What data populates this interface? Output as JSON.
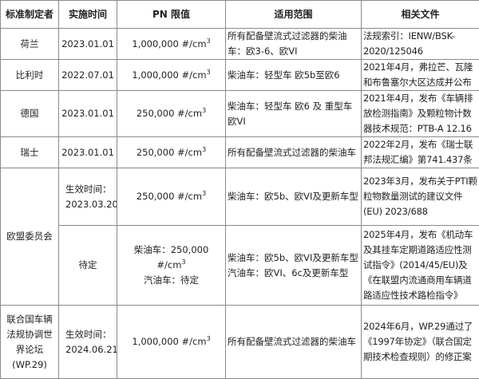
{
  "headers": [
    "标准制定者",
    "实施时间",
    "PN 限值",
    "适用范围",
    "相关文件"
  ],
  "rows": [
    {
      "maker": "荷兰",
      "date": "2023.01.01",
      "pn": "1,000,000 #/cm",
      "scope": "所有配备壁流式过滤器的柴油车：欧3-6、欧VI",
      "docs": "法规索引：IENW/BSK-2020/125046"
    },
    {
      "maker": "比利时",
      "date": "2022.07.01",
      "pn": "1,000,000 #/cm",
      "scope": "柴油车：轻型车 欧5b至欧6",
      "docs": "2021年4月，弗拉芒、瓦隆和布鲁塞尔大区达成并公布"
    },
    {
      "maker": "德国",
      "date": "2023.01.01",
      "pn": "250,000 #/cm",
      "scope": "柴油车：轻型车 欧6 及 重型车欧VI",
      "docs": "2021年4月，发布《车辆排放检测指南》及颗粒物计数器技术规范：PTB-A 12.16"
    },
    {
      "maker": "瑞士",
      "date": "2023.01.01",
      "pn": "250,000 #/cm",
      "scope": "所有配备壁流式过滤器的柴油车",
      "docs": "2022年2月，发布《瑞士联邦法规汇编》第741.437条"
    },
    {
      "maker": "欧盟委员会",
      "date": "生效时间：2023.03.20",
      "pn": "250,000 #/cm",
      "scope": "柴油车：欧5b、欧VI及更新车型",
      "docs": "2023年3月，发布关于PTI颗粒物数量测试的建议文件(EU) 2023/688"
    },
    {
      "date": "待定",
      "pn": "柴油车：250,000 #/cm",
      "pn2": "汽油车：待定",
      "scope": "柴油车：欧5b、欧VI及更新车型",
      "scope2": "汽油车：欧VI、6c及更新车型",
      "docs": "2025年4月，发布《机动车及其挂车定期道路适应性测试指令》(2014/45/EU)及《在联盟内流通商用车辆道路适应性技术路检指令》"
    },
    {
      "maker": "联合国车辆法规协调世界论坛(WP.29)",
      "date": "生效时间：2024.06.21",
      "pn": "1,000,000 #/cm",
      "scope": "所有配备壁流式过滤器的柴油车",
      "docs": "2024年6月，WP.29通过了《1997年协定》（联合国定期技术检查规则）的修正案"
    }
  ],
  "unit_exponent": "3"
}
